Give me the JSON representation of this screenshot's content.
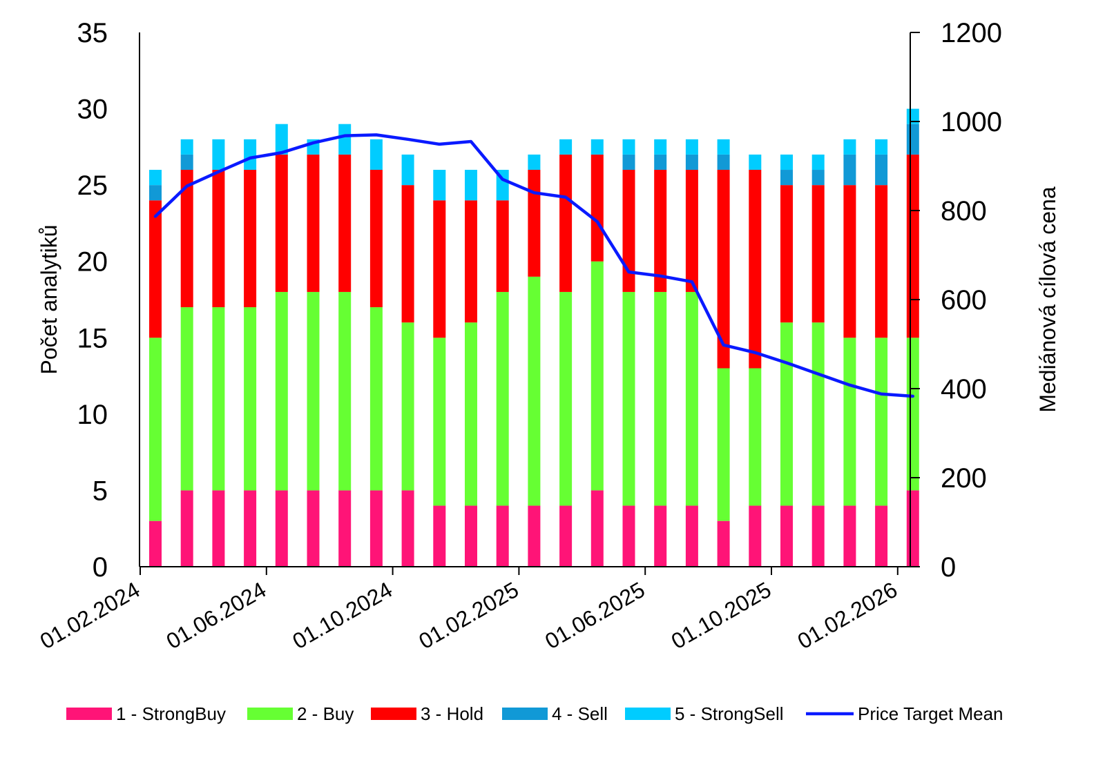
{
  "chart_data": {
    "type": "bar",
    "subtype": "stacked-bar-with-line-secondary-axis",
    "categories": [
      "01.02.2024",
      "01.03.2024",
      "01.04.2024",
      "01.05.2024",
      "01.06.2024",
      "01.07.2024",
      "01.08.2024",
      "01.09.2024",
      "01.10.2024",
      "01.11.2024",
      "01.12.2024",
      "01.01.2025",
      "01.02.2025",
      "01.03.2025",
      "01.04.2025",
      "01.05.2025",
      "01.06.2025",
      "01.07.2025",
      "01.08.2025",
      "01.09.2025",
      "01.10.2025",
      "01.11.2025",
      "01.12.2025",
      "01.01.2026",
      "01.02.2026"
    ],
    "x_tick_labels": [
      "01.02.2024",
      "01.06.2024",
      "01.10.2024",
      "01.02.2025",
      "01.06.2025",
      "01.10.2025",
      "01.02.2026"
    ],
    "series": [
      {
        "name": "1 - StrongBuy",
        "color": "#ff1477",
        "axis": "left",
        "values": [
          3,
          5,
          5,
          5,
          5,
          5,
          5,
          5,
          5,
          4,
          4,
          4,
          4,
          4,
          5,
          4,
          4,
          4,
          3,
          4,
          4,
          4,
          4,
          4,
          5
        ]
      },
      {
        "name": "2 - Buy",
        "color": "#66ff33",
        "axis": "left",
        "values": [
          12,
          12,
          12,
          12,
          13,
          13,
          13,
          12,
          11,
          11,
          12,
          14,
          15,
          14,
          15,
          14,
          14,
          14,
          10,
          9,
          12,
          12,
          11,
          11,
          10
        ]
      },
      {
        "name": "3 - Hold",
        "color": "#ff0000",
        "axis": "left",
        "values": [
          9,
          9,
          9,
          9,
          9,
          9,
          9,
          9,
          9,
          9,
          8,
          6,
          7,
          9,
          7,
          8,
          8,
          8,
          13,
          13,
          9,
          9,
          10,
          10,
          12
        ]
      },
      {
        "name": "4 - Sell",
        "color": "#1199d6",
        "axis": "left",
        "values": [
          1,
          1,
          0,
          0,
          0,
          0,
          0,
          0,
          0,
          0,
          0,
          0,
          0,
          0,
          0,
          1,
          1,
          1,
          1,
          0,
          1,
          1,
          2,
          2,
          2
        ]
      },
      {
        "name": "5 - StrongSell",
        "color": "#00ccff",
        "axis": "left",
        "values": [
          1,
          1,
          2,
          2,
          2,
          1,
          2,
          2,
          2,
          2,
          2,
          2,
          1,
          1,
          1,
          1,
          1,
          1,
          1,
          1,
          1,
          1,
          1,
          1,
          1
        ]
      }
    ],
    "line_series": {
      "name": "Price Target  Mean",
      "color": "#0a1aff",
      "axis": "right",
      "values": [
        787,
        855,
        887,
        918,
        930,
        952,
        968,
        970,
        960,
        949,
        955,
        870,
        840,
        830,
        775,
        662,
        653,
        640,
        498,
        481,
        458,
        433,
        408,
        388,
        383
      ]
    },
    "ylabel": "Počet analytiků",
    "y2label": "Mediánová cílová cena",
    "ylim": [
      0,
      35
    ],
    "y_ticks": [
      "0",
      "5",
      "10",
      "15",
      "20",
      "25",
      "30",
      "35"
    ],
    "y2lim": [
      0,
      1200
    ],
    "y2_ticks": [
      "0",
      "200",
      "400",
      "600",
      "800",
      "1000",
      "1200"
    ],
    "legend": [
      "1 - StrongBuy",
      "2 - Buy",
      "3 - Hold",
      "4 - Sell",
      "5 - StrongSell",
      "Price Target  Mean"
    ],
    "legend_position": "bottom",
    "grid": false
  }
}
